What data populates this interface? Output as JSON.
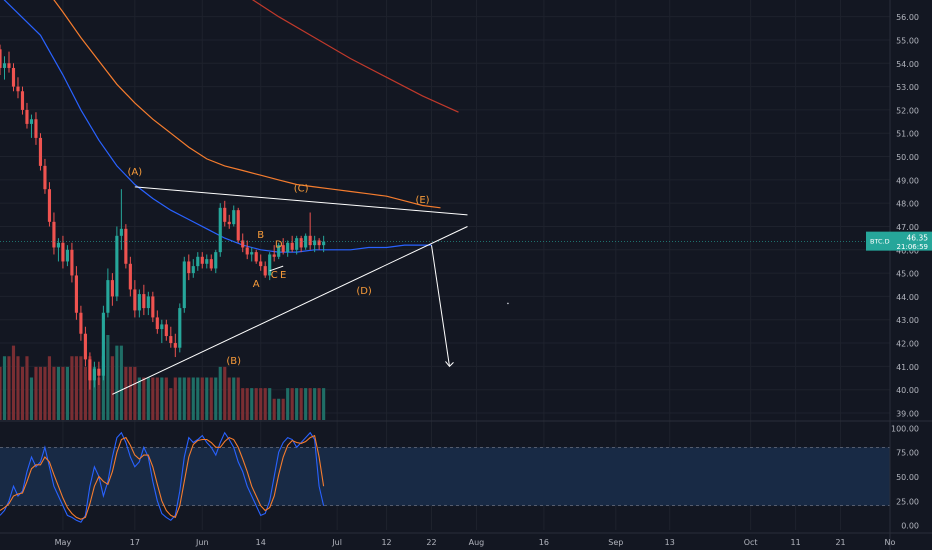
{
  "ticker": "BTC.D",
  "last_price": "46.35",
  "countdown": "21:06:59",
  "colors": {
    "background": "#131722",
    "grid": "#1e222d",
    "up": "#26a69a",
    "down": "#ef5350",
    "vol_up": "#1f6e66",
    "vol_down": "#7a2e33",
    "ema_fast": "#2962ff",
    "ema_slow": "#f57c2e",
    "ema_long": "#c0392b",
    "trendline": "#ffffff",
    "wave_label": "#f79b3a",
    "stoch_k": "#2962ff",
    "stoch_d": "#f57c2e",
    "stoch_band": "#182a45",
    "axis_text": "#b2b5be",
    "price_badge": "#26a69a"
  },
  "chart_data": [
    {
      "type": "candlestick",
      "y_axis": {
        "ticks": [
          "56.00",
          "55.00",
          "54.00",
          "53.00",
          "52.00",
          "51.00",
          "50.00",
          "49.00",
          "48.00",
          "47.00",
          "46.00",
          "45.00",
          "44.00",
          "43.00",
          "42.00",
          "41.00",
          "40.00",
          "39.00"
        ],
        "ylim": [
          38.7,
          56.5
        ]
      },
      "x_axis": {
        "ticks": [
          {
            "label": "May",
            "day": 0
          },
          {
            "label": "17",
            "day": 16
          },
          {
            "label": "Jun",
            "day": 31
          },
          {
            "label": "14",
            "day": 44
          },
          {
            "label": "Jul",
            "day": 61
          },
          {
            "label": "12",
            "day": 72
          },
          {
            "label": "22",
            "day": 82
          },
          {
            "label": "Aug",
            "day": 92
          },
          {
            "label": "16",
            "day": 107
          },
          {
            "label": "Sep",
            "day": 123
          },
          {
            "label": "13",
            "day": 135
          },
          {
            "label": "Oct",
            "day": 153
          },
          {
            "label": "11",
            "day": 163
          },
          {
            "label": "21",
            "day": 173
          },
          {
            "label": "No",
            "day": 184
          }
        ],
        "xlim_days": [
          -14,
          184
        ]
      },
      "candles_ohlc": [
        [
          54.6,
          54.8,
          53.5,
          53.8
        ],
        [
          53.8,
          54.3,
          53.3,
          54.0
        ],
        [
          54.0,
          54.5,
          53.6,
          53.8
        ],
        [
          53.8,
          54.0,
          52.8,
          53.0
        ],
        [
          53.0,
          53.4,
          52.5,
          52.8
        ],
        [
          52.8,
          53.0,
          51.8,
          52.0
        ],
        [
          52.0,
          52.3,
          51.2,
          51.4
        ],
        [
          51.4,
          51.8,
          50.8,
          51.6
        ],
        [
          51.6,
          51.9,
          50.5,
          50.8
        ],
        [
          50.8,
          51.0,
          49.4,
          49.6
        ],
        [
          49.6,
          49.9,
          48.4,
          48.6
        ],
        [
          48.6,
          48.9,
          47.0,
          47.2
        ],
        [
          47.2,
          47.6,
          45.8,
          46.1
        ],
        [
          46.1,
          46.5,
          45.5,
          46.3
        ],
        [
          46.3,
          46.6,
          45.2,
          45.5
        ],
        [
          45.5,
          46.2,
          45.3,
          46.0
        ],
        [
          46.0,
          46.3,
          44.6,
          44.9
        ],
        [
          44.9,
          45.3,
          43.0,
          43.3
        ],
        [
          43.3,
          43.6,
          42.1,
          42.4
        ],
        [
          42.4,
          42.7,
          41.0,
          41.3
        ],
        [
          41.3,
          41.6,
          40.0,
          40.4
        ],
        [
          40.4,
          41.2,
          40.1,
          40.9
        ],
        [
          40.9,
          41.2,
          40.2,
          40.6
        ],
        [
          40.6,
          43.6,
          40.4,
          43.3
        ],
        [
          43.3,
          45.2,
          43.1,
          44.7
        ],
        [
          44.7,
          45.0,
          43.6,
          44.0
        ],
        [
          44.0,
          47.0,
          43.8,
          46.6
        ],
        [
          46.6,
          48.6,
          46.0,
          46.9
        ],
        [
          46.9,
          47.1,
          45.2,
          45.4
        ],
        [
          45.4,
          45.7,
          44.0,
          44.3
        ],
        [
          44.3,
          44.7,
          43.1,
          43.4
        ],
        [
          43.4,
          44.3,
          43.1,
          44.1
        ],
        [
          44.1,
          44.5,
          43.2,
          43.5
        ],
        [
          43.5,
          44.2,
          43.2,
          44.0
        ],
        [
          44.0,
          44.2,
          42.9,
          43.1
        ],
        [
          43.1,
          43.4,
          42.4,
          42.6
        ],
        [
          42.6,
          43.0,
          42.0,
          42.8
        ],
        [
          42.8,
          43.0,
          42.1,
          42.3
        ],
        [
          42.3,
          42.7,
          41.8,
          42.0
        ],
        [
          42.0,
          42.4,
          41.4,
          41.8
        ],
        [
          41.8,
          43.7,
          41.6,
          43.5
        ],
        [
          43.5,
          45.7,
          43.3,
          45.5
        ],
        [
          45.5,
          45.8,
          44.7,
          45.0
        ],
        [
          45.0,
          45.6,
          44.8,
          45.3
        ],
        [
          45.3,
          45.9,
          45.1,
          45.7
        ],
        [
          45.7,
          45.9,
          45.2,
          45.4
        ],
        [
          45.4,
          45.8,
          45.2,
          45.6
        ],
        [
          45.6,
          45.8,
          45.1,
          45.2
        ],
        [
          45.2,
          46.0,
          45.0,
          45.9
        ],
        [
          45.9,
          48.0,
          45.7,
          47.8
        ],
        [
          47.8,
          48.1,
          47.0,
          47.2
        ],
        [
          47.2,
          47.5,
          46.9,
          47.1
        ],
        [
          47.1,
          47.9,
          47.0,
          47.7
        ],
        [
          47.7,
          47.8,
          46.3,
          46.4
        ],
        [
          46.4,
          46.7,
          45.9,
          46.1
        ],
        [
          46.1,
          46.4,
          45.6,
          45.8
        ],
        [
          45.8,
          46.1,
          45.5,
          45.9
        ],
        [
          45.9,
          46.0,
          45.4,
          45.5
        ],
        [
          45.5,
          45.8,
          45.1,
          45.3
        ],
        [
          45.3,
          45.5,
          44.8,
          44.9
        ],
        [
          44.9,
          45.9,
          44.7,
          45.8
        ],
        [
          45.8,
          46.2,
          45.5,
          45.7
        ],
        [
          45.7,
          46.3,
          45.6,
          46.2
        ],
        [
          46.2,
          46.5,
          45.8,
          45.9
        ],
        [
          45.9,
          46.4,
          45.7,
          46.3
        ],
        [
          46.3,
          46.6,
          45.9,
          46.0
        ],
        [
          46.0,
          46.6,
          45.8,
          46.5
        ],
        [
          46.5,
          46.6,
          45.9,
          46.1
        ],
        [
          46.1,
          46.7,
          46.0,
          46.6
        ],
        [
          46.6,
          47.6,
          46.0,
          46.2
        ],
        [
          46.2,
          46.6,
          45.9,
          46.4
        ],
        [
          46.4,
          46.5,
          46.0,
          46.2
        ],
        [
          46.2,
          46.6,
          45.9,
          46.35
        ]
      ],
      "first_candle_day": -14,
      "volume_values": [
        5,
        6,
        6,
        7,
        6,
        5,
        6,
        4,
        5,
        5,
        5,
        6,
        5,
        5,
        5,
        5,
        6,
        6,
        6,
        5,
        6,
        5,
        4,
        6,
        8,
        6,
        7,
        7,
        5,
        5,
        5,
        4,
        4,
        4,
        4,
        4,
        4,
        4,
        3,
        4,
        4,
        4,
        4,
        4,
        4,
        4,
        4,
        4,
        4,
        5,
        5,
        4,
        4,
        4,
        3,
        3,
        3,
        3,
        3,
        3,
        3,
        2,
        2,
        2,
        3,
        3,
        3,
        3,
        3,
        3,
        3,
        3,
        3
      ],
      "moving_averages": [
        {
          "day": [
            -14,
            -5,
            0,
            4,
            8,
            12,
            16,
            20,
            24,
            28,
            32,
            36,
            40,
            44,
            48,
            52,
            56,
            60,
            64,
            68,
            72,
            76,
            80,
            82
          ],
          "value": [
            56.9,
            55.2,
            53.5,
            52.0,
            50.7,
            49.6,
            48.8,
            48.2,
            47.7,
            47.3,
            46.9,
            46.5,
            46.2,
            46.0,
            45.9,
            45.9,
            46.0,
            46.0,
            46.0,
            46.1,
            46.1,
            46.2,
            46.2,
            46.2
          ]
        },
        {
          "day": [
            -14,
            -5,
            0,
            4,
            8,
            12,
            16,
            20,
            24,
            28,
            32,
            36,
            40,
            44,
            48,
            52,
            56,
            60,
            64,
            68,
            72,
            76,
            80,
            84
          ],
          "value": [
            58.8,
            57.5,
            56.2,
            55.1,
            54.1,
            53.1,
            52.3,
            51.6,
            51.0,
            50.4,
            49.9,
            49.6,
            49.4,
            49.2,
            49.0,
            48.8,
            48.7,
            48.6,
            48.5,
            48.4,
            48.3,
            48.1,
            47.9,
            47.8
          ]
        },
        {
          "day": [
            24,
            32,
            40,
            48,
            56,
            64,
            72,
            80,
            88
          ],
          "value": [
            59.0,
            58.0,
            57.0,
            56.0,
            55.1,
            54.2,
            53.4,
            52.6,
            51.9
          ]
        }
      ],
      "trendlines": [
        {
          "from_day": 16,
          "from_value": 48.7,
          "to_day": 90,
          "to_value": 47.5
        },
        {
          "from_day": 11,
          "from_value": 39.8,
          "to_day": 90,
          "to_value": 47.0
        },
        {
          "from_day": 49,
          "from_value": 45.3,
          "to_day": 46,
          "to_value": 45.1
        },
        {
          "from_day": 82,
          "from_value": 46.2,
          "to_day": 86,
          "to_value": 41.0
        }
      ],
      "wave_labels": [
        {
          "text": "(A)",
          "day": 16,
          "value": 49.2
        },
        {
          "text": "(B)",
          "day": 38,
          "value": 41.1
        },
        {
          "text": "B",
          "day": 44,
          "value": 46.5
        },
        {
          "text": "D",
          "day": 48,
          "value": 46.1
        },
        {
          "text": "A",
          "day": 43,
          "value": 44.4
        },
        {
          "text": "C",
          "day": 47,
          "value": 44.8
        },
        {
          "text": "E",
          "day": 49,
          "value": 44.8
        },
        {
          "text": "(C)",
          "day": 53,
          "value": 48.5
        },
        {
          "text": "(D)",
          "day": 67,
          "value": 44.1
        },
        {
          "text": "(E)",
          "day": 80,
          "value": 48.0
        }
      ],
      "cursor_dot": {
        "day": 99,
        "value": 43.7
      }
    },
    {
      "type": "line",
      "name": "stochastic",
      "y_axis": {
        "ticks": [
          "100.00",
          "75.00",
          "50.00",
          "25.00",
          "0.00"
        ],
        "ylim": [
          -5,
          105
        ]
      },
      "band": [
        20,
        80
      ],
      "k_values": [
        10,
        15,
        25,
        40,
        30,
        35,
        55,
        70,
        60,
        65,
        80,
        60,
        40,
        30,
        20,
        10,
        8,
        5,
        3,
        10,
        40,
        60,
        50,
        30,
        45,
        70,
        90,
        95,
        85,
        70,
        60,
        65,
        80,
        70,
        45,
        25,
        12,
        8,
        5,
        10,
        35,
        70,
        90,
        85,
        88,
        92,
        85,
        80,
        72,
        85,
        95,
        88,
        80,
        65,
        55,
        40,
        30,
        20,
        10,
        12,
        25,
        50,
        75,
        85,
        90,
        88,
        80,
        85,
        90,
        95,
        88,
        40,
        20
      ],
      "d_values": [
        15,
        18,
        22,
        30,
        32,
        33,
        45,
        58,
        62,
        62,
        70,
        65,
        52,
        40,
        28,
        18,
        12,
        8,
        6,
        8,
        22,
        40,
        50,
        45,
        42,
        55,
        75,
        88,
        90,
        82,
        72,
        68,
        72,
        72,
        60,
        42,
        25,
        15,
        10,
        8,
        20,
        45,
        70,
        83,
        87,
        88,
        88,
        85,
        80,
        80,
        86,
        90,
        88,
        80,
        68,
        55,
        40,
        30,
        20,
        15,
        18,
        30,
        52,
        70,
        82,
        87,
        85,
        84,
        86,
        90,
        92,
        70,
        40
      ]
    }
  ]
}
